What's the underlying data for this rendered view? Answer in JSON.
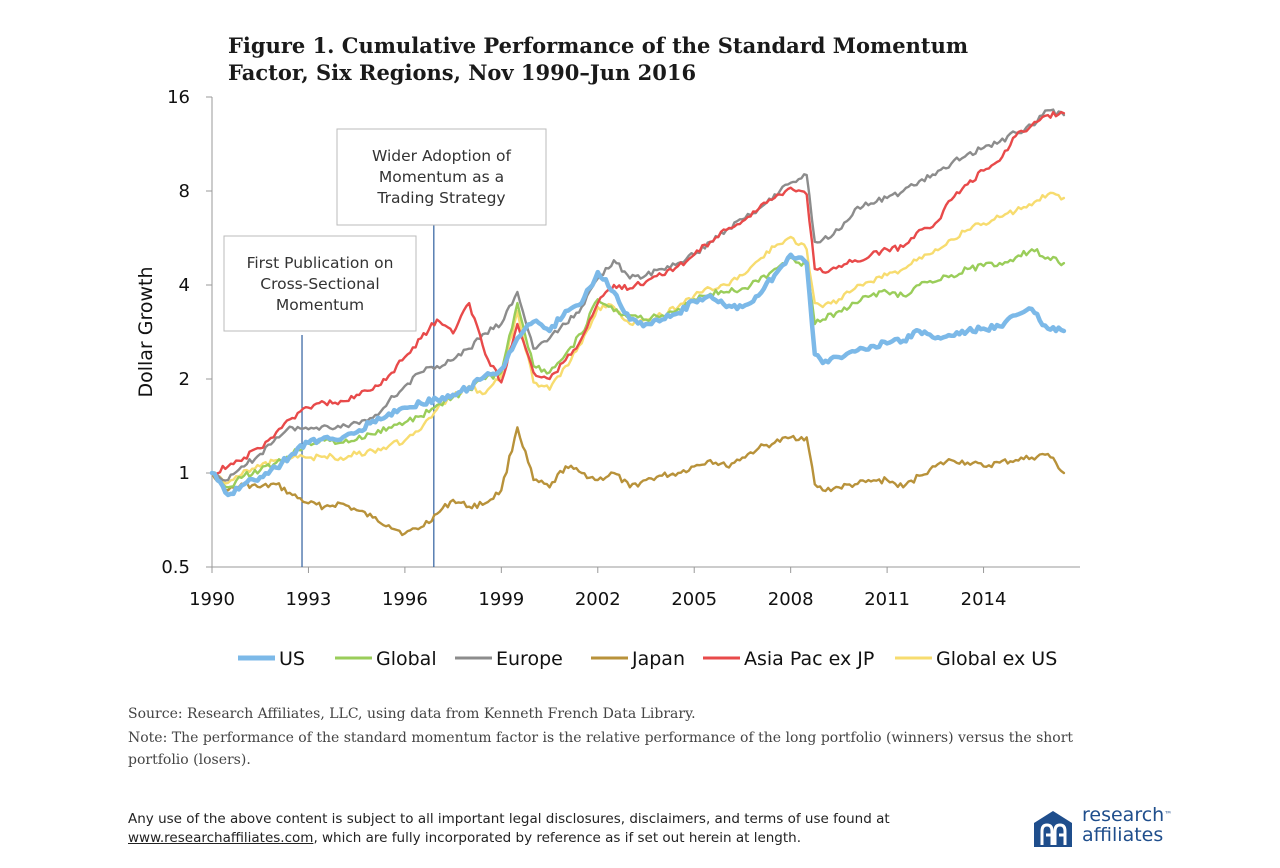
{
  "chart_data": {
    "type": "line",
    "title": "Figure 1. Cumulative Performance of the Standard Momentum Factor, Six Regions, Nov 1990–Jun 2016",
    "title_lines": [
      "Figure 1. Cumulative Performance of the Standard Momentum",
      "Factor, Six Regions, Nov 1990–Jun 2016"
    ],
    "ylabel": "Dollar Growth",
    "xlabel": "",
    "y_scale": "log2",
    "ylim": [
      0.5,
      16
    ],
    "y_ticks": [
      "16",
      "8",
      "4",
      "2",
      "1",
      "0.5"
    ],
    "xlim": [
      1990,
      2017
    ],
    "x_ticks": [
      "1990",
      "1993",
      "1996",
      "1999",
      "2002",
      "2005",
      "2008",
      "2011",
      "2014"
    ],
    "legend_position": "bottom",
    "grid": false,
    "annotations": [
      {
        "lines": [
          "First Publication on",
          "Cross-Sectional",
          "Momentum"
        ],
        "x": 1992.8
      },
      {
        "lines": [
          "Wider Adoption of",
          "Momentum as a",
          "Trading Strategy"
        ],
        "x": 1996.9
      }
    ],
    "series": [
      {
        "name": "US",
        "color": "#7cb9e8",
        "x": [
          1990.0,
          1990.5,
          1991.0,
          1991.5,
          1992.0,
          1992.5,
          1993.0,
          1993.5,
          1994.0,
          1994.5,
          1995.0,
          1995.5,
          1996.0,
          1996.5,
          1997.0,
          1997.5,
          1998.0,
          1998.5,
          1999.0,
          1999.5,
          2000.0,
          2000.5,
          2001.0,
          2001.5,
          2002.0,
          2002.5,
          2003.0,
          2003.5,
          2004.0,
          2004.5,
          2005.0,
          2005.5,
          2006.0,
          2006.5,
          2007.0,
          2007.5,
          2008.0,
          2008.5,
          2008.75,
          2009.0,
          2009.5,
          2010.0,
          2010.5,
          2011.0,
          2011.5,
          2012.0,
          2012.5,
          2013.0,
          2013.5,
          2014.0,
          2014.5,
          2015.0,
          2015.5,
          2016.0,
          2016.5
        ],
        "y": [
          1.0,
          0.85,
          0.92,
          0.97,
          1.04,
          1.15,
          1.25,
          1.3,
          1.28,
          1.35,
          1.47,
          1.55,
          1.62,
          1.67,
          1.72,
          1.78,
          1.88,
          2.05,
          2.15,
          2.7,
          3.05,
          2.85,
          3.3,
          3.5,
          4.4,
          3.8,
          3.1,
          3.0,
          3.1,
          3.25,
          3.55,
          3.7,
          3.4,
          3.4,
          3.7,
          4.3,
          5.0,
          4.7,
          2.4,
          2.25,
          2.35,
          2.45,
          2.55,
          2.6,
          2.65,
          2.85,
          2.7,
          2.75,
          2.85,
          2.9,
          2.95,
          3.2,
          3.35,
          2.9,
          2.85
        ]
      },
      {
        "name": "Global",
        "color": "#9acd5a",
        "x": [
          1990.0,
          1990.5,
          1991.0,
          1991.5,
          1992.0,
          1992.5,
          1993.0,
          1993.5,
          1994.0,
          1994.5,
          1995.0,
          1995.5,
          1996.0,
          1996.5,
          1997.0,
          1997.5,
          1998.0,
          1998.5,
          1999.0,
          1999.5,
          2000.0,
          2000.5,
          2001.0,
          2001.5,
          2002.0,
          2002.5,
          2003.0,
          2003.5,
          2004.0,
          2004.5,
          2005.0,
          2005.5,
          2006.0,
          2006.5,
          2007.0,
          2007.5,
          2008.0,
          2008.5,
          2008.75,
          2009.0,
          2009.5,
          2010.0,
          2010.5,
          2011.0,
          2011.5,
          2012.0,
          2012.5,
          2013.0,
          2013.5,
          2014.0,
          2014.5,
          2015.0,
          2015.5,
          2016.0,
          2016.5
        ],
        "y": [
          1.0,
          0.9,
          0.98,
          1.02,
          1.08,
          1.15,
          1.25,
          1.27,
          1.25,
          1.28,
          1.33,
          1.4,
          1.45,
          1.52,
          1.65,
          1.75,
          1.85,
          2.0,
          2.1,
          3.5,
          2.2,
          2.1,
          2.4,
          2.8,
          3.6,
          3.3,
          3.2,
          3.1,
          3.2,
          3.35,
          3.6,
          3.75,
          3.8,
          3.9,
          4.1,
          4.5,
          4.9,
          4.6,
          3.0,
          3.1,
          3.3,
          3.5,
          3.7,
          3.8,
          3.7,
          4.0,
          4.1,
          4.3,
          4.5,
          4.6,
          4.7,
          4.9,
          5.2,
          4.9,
          4.7
        ]
      },
      {
        "name": "Europe",
        "color": "#8c8c8c",
        "x": [
          1990.0,
          1990.5,
          1991.0,
          1991.5,
          1992.0,
          1992.5,
          1993.0,
          1993.5,
          1994.0,
          1994.5,
          1995.0,
          1995.5,
          1996.0,
          1996.5,
          1997.0,
          1997.5,
          1998.0,
          1998.5,
          1999.0,
          1999.5,
          2000.0,
          2000.5,
          2001.0,
          2001.5,
          2002.0,
          2002.5,
          2003.0,
          2003.5,
          2004.0,
          2004.5,
          2005.0,
          2005.5,
          2006.0,
          2006.5,
          2007.0,
          2007.5,
          2008.0,
          2008.5,
          2008.75,
          2009.0,
          2009.5,
          2010.0,
          2010.5,
          2011.0,
          2011.5,
          2012.0,
          2012.5,
          2013.0,
          2013.5,
          2014.0,
          2014.5,
          2015.0,
          2015.5,
          2016.0,
          2016.5
        ],
        "y": [
          1.0,
          0.95,
          1.05,
          1.15,
          1.3,
          1.4,
          1.38,
          1.42,
          1.4,
          1.45,
          1.5,
          1.7,
          1.9,
          2.1,
          2.2,
          2.3,
          2.5,
          2.8,
          3.0,
          3.8,
          2.5,
          2.7,
          3.0,
          3.4,
          4.2,
          4.8,
          4.2,
          4.3,
          4.5,
          4.7,
          5.0,
          5.5,
          6.0,
          6.5,
          7.0,
          7.8,
          8.5,
          9.0,
          5.5,
          5.6,
          6.0,
          7.0,
          7.3,
          7.6,
          8.0,
          8.6,
          9.0,
          9.8,
          10.5,
          11.0,
          11.5,
          12.3,
          13.0,
          14.5,
          14.0
        ]
      },
      {
        "name": "Japan",
        "color": "#b8923a",
        "x": [
          1990.0,
          1990.5,
          1991.0,
          1991.5,
          1992.0,
          1992.5,
          1993.0,
          1993.5,
          1994.0,
          1994.5,
          1995.0,
          1995.5,
          1996.0,
          1996.5,
          1997.0,
          1997.5,
          1998.0,
          1998.5,
          1999.0,
          1999.5,
          2000.0,
          2000.5,
          2001.0,
          2001.5,
          2002.0,
          2002.5,
          2003.0,
          2003.5,
          2004.0,
          2004.5,
          2005.0,
          2005.5,
          2006.0,
          2006.5,
          2007.0,
          2007.5,
          2008.0,
          2008.5,
          2008.75,
          2009.0,
          2009.5,
          2010.0,
          2010.5,
          2011.0,
          2011.5,
          2012.0,
          2012.5,
          2013.0,
          2013.5,
          2014.0,
          2014.5,
          2015.0,
          2015.5,
          2016.0,
          2016.5
        ],
        "y": [
          1.0,
          0.88,
          0.92,
          0.9,
          0.92,
          0.85,
          0.8,
          0.78,
          0.8,
          0.76,
          0.72,
          0.68,
          0.64,
          0.67,
          0.74,
          0.82,
          0.78,
          0.8,
          0.88,
          1.4,
          0.95,
          0.9,
          1.05,
          1.0,
          0.95,
          1.0,
          0.9,
          0.95,
          0.98,
          1.0,
          1.05,
          1.1,
          1.05,
          1.12,
          1.2,
          1.25,
          1.3,
          1.3,
          0.92,
          0.88,
          0.9,
          0.92,
          0.94,
          0.95,
          0.9,
          0.98,
          1.05,
          1.1,
          1.08,
          1.05,
          1.08,
          1.1,
          1.12,
          1.15,
          1.0
        ]
      },
      {
        "name": "Asia Pac ex JP",
        "color": "#e84a4a",
        "x": [
          1990.0,
          1990.5,
          1991.0,
          1991.5,
          1992.0,
          1992.5,
          1993.0,
          1993.5,
          1994.0,
          1994.5,
          1995.0,
          1995.5,
          1996.0,
          1996.5,
          1997.0,
          1997.5,
          1998.0,
          1998.5,
          1999.0,
          1999.5,
          2000.0,
          2000.5,
          2001.0,
          2001.5,
          2002.0,
          2002.5,
          2003.0,
          2003.5,
          2004.0,
          2004.5,
          2005.0,
          2005.5,
          2006.0,
          2006.5,
          2007.0,
          2007.5,
          2008.0,
          2008.5,
          2008.75,
          2009.0,
          2009.5,
          2010.0,
          2010.5,
          2011.0,
          2011.5,
          2012.0,
          2012.5,
          2013.0,
          2013.5,
          2014.0,
          2014.5,
          2015.0,
          2015.5,
          2016.0,
          2016.5
        ],
        "y": [
          1.0,
          1.05,
          1.12,
          1.2,
          1.35,
          1.5,
          1.62,
          1.68,
          1.7,
          1.78,
          1.85,
          2.05,
          2.35,
          2.7,
          3.1,
          2.8,
          3.5,
          2.4,
          1.95,
          3.0,
          2.1,
          2.0,
          2.3,
          2.7,
          3.5,
          4.0,
          3.9,
          4.1,
          4.3,
          4.6,
          5.0,
          5.5,
          6.0,
          6.4,
          7.0,
          7.6,
          8.2,
          7.8,
          4.5,
          4.4,
          4.6,
          4.8,
          5.0,
          5.2,
          5.3,
          6.0,
          6.3,
          7.5,
          8.4,
          9.3,
          10.0,
          12.0,
          13.0,
          14.0,
          14.2
        ]
      },
      {
        "name": "Global ex US",
        "color": "#f7dc6f",
        "x": [
          1990.0,
          1990.5,
          1991.0,
          1991.5,
          1992.0,
          1992.5,
          1993.0,
          1993.5,
          1994.0,
          1994.5,
          1995.0,
          1995.5,
          1996.0,
          1996.5,
          1997.0,
          1997.5,
          1998.0,
          1998.5,
          1999.0,
          1999.5,
          2000.0,
          2000.5,
          2001.0,
          2001.5,
          2002.0,
          2002.5,
          2003.0,
          2003.5,
          2004.0,
          2004.5,
          2005.0,
          2005.5,
          2006.0,
          2006.5,
          2007.0,
          2007.5,
          2008.0,
          2008.5,
          2008.75,
          2009.0,
          2009.5,
          2010.0,
          2010.5,
          2011.0,
          2011.5,
          2012.0,
          2012.5,
          2013.0,
          2013.5,
          2014.0,
          2014.5,
          2015.0,
          2015.5,
          2016.0,
          2016.5
        ],
        "y": [
          1.0,
          0.93,
          1.02,
          1.05,
          1.1,
          1.12,
          1.12,
          1.13,
          1.12,
          1.15,
          1.18,
          1.22,
          1.27,
          1.38,
          1.6,
          1.75,
          1.9,
          1.8,
          2.05,
          3.3,
          1.95,
          1.85,
          2.2,
          2.6,
          3.4,
          3.4,
          3.0,
          3.1,
          3.2,
          3.4,
          3.7,
          3.9,
          4.0,
          4.3,
          4.8,
          5.3,
          5.7,
          5.2,
          3.5,
          3.4,
          3.6,
          3.9,
          4.1,
          4.3,
          4.5,
          4.9,
          5.2,
          5.6,
          6.0,
          6.3,
          6.6,
          6.9,
          7.2,
          7.8,
          7.6
        ]
      }
    ]
  },
  "footer": {
    "source": "Source:  Research Affiliates, LLC, using data from Kenneth French Data Library.",
    "note": "Note: The performance of the standard momentum factor is the relative performance of the long portfolio (winners) versus the short portfolio (losers).",
    "disclaimer_line1": "Any use of the above content is subject to all important legal disclosures, disclaimers, and terms of use found at",
    "disclaimer_link": "www.researchaffiliates.com",
    "disclaimer_rest": ", which are fully incorporated by reference as if set out herein at length."
  },
  "logo": {
    "line1": "research",
    "trademark": "™",
    "line2": "affiliates",
    "color": "#1f4e8c"
  }
}
